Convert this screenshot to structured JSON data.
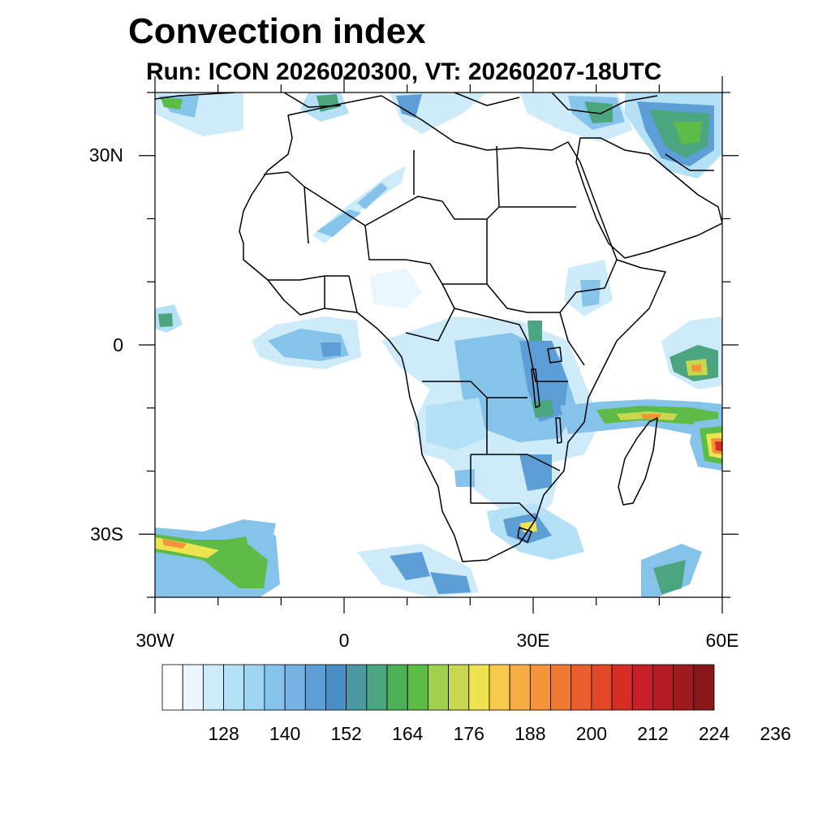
{
  "title": "Convection index",
  "subtitle": "Run: ICON 2026020300,  VT: 20260207-18UTC",
  "axes": {
    "y_labels": [
      "30N",
      "0",
      "30S"
    ],
    "x_labels": [
      "30W",
      "0",
      "30E",
      "60E"
    ],
    "lon_range": [
      -30,
      60
    ],
    "lat_range": [
      -40,
      40
    ]
  },
  "colorbar": {
    "labels": [
      "128",
      "140",
      "152",
      "164",
      "176",
      "188",
      "200",
      "212",
      "224",
      "236"
    ],
    "colors": [
      "#ffffff",
      "#eaf6fd",
      "#cdebf9",
      "#b5e1f6",
      "#9dd5f2",
      "#86c3ea",
      "#76b2e3",
      "#5d9ed6",
      "#4b8ec4",
      "#4b9aa3",
      "#4ba57f",
      "#4cb155",
      "#5dbb47",
      "#a3cf4f",
      "#c9d74e",
      "#efe34f",
      "#f7c94d",
      "#f6ae43",
      "#f4943a",
      "#f07a32",
      "#ea5f2c",
      "#e24728",
      "#d62e26",
      "#c81e27",
      "#b31b22",
      "#9e1a1d",
      "#8a1818"
    ]
  },
  "colors": {
    "light_blue": "#cdebf9",
    "blue": "#86c3ea",
    "mid_blue": "#5d9ed6",
    "teal": "#4ba57f",
    "green": "#5dbb47",
    "yellow": "#efe34f",
    "orange": "#f4943a",
    "red": "#d62e26"
  }
}
